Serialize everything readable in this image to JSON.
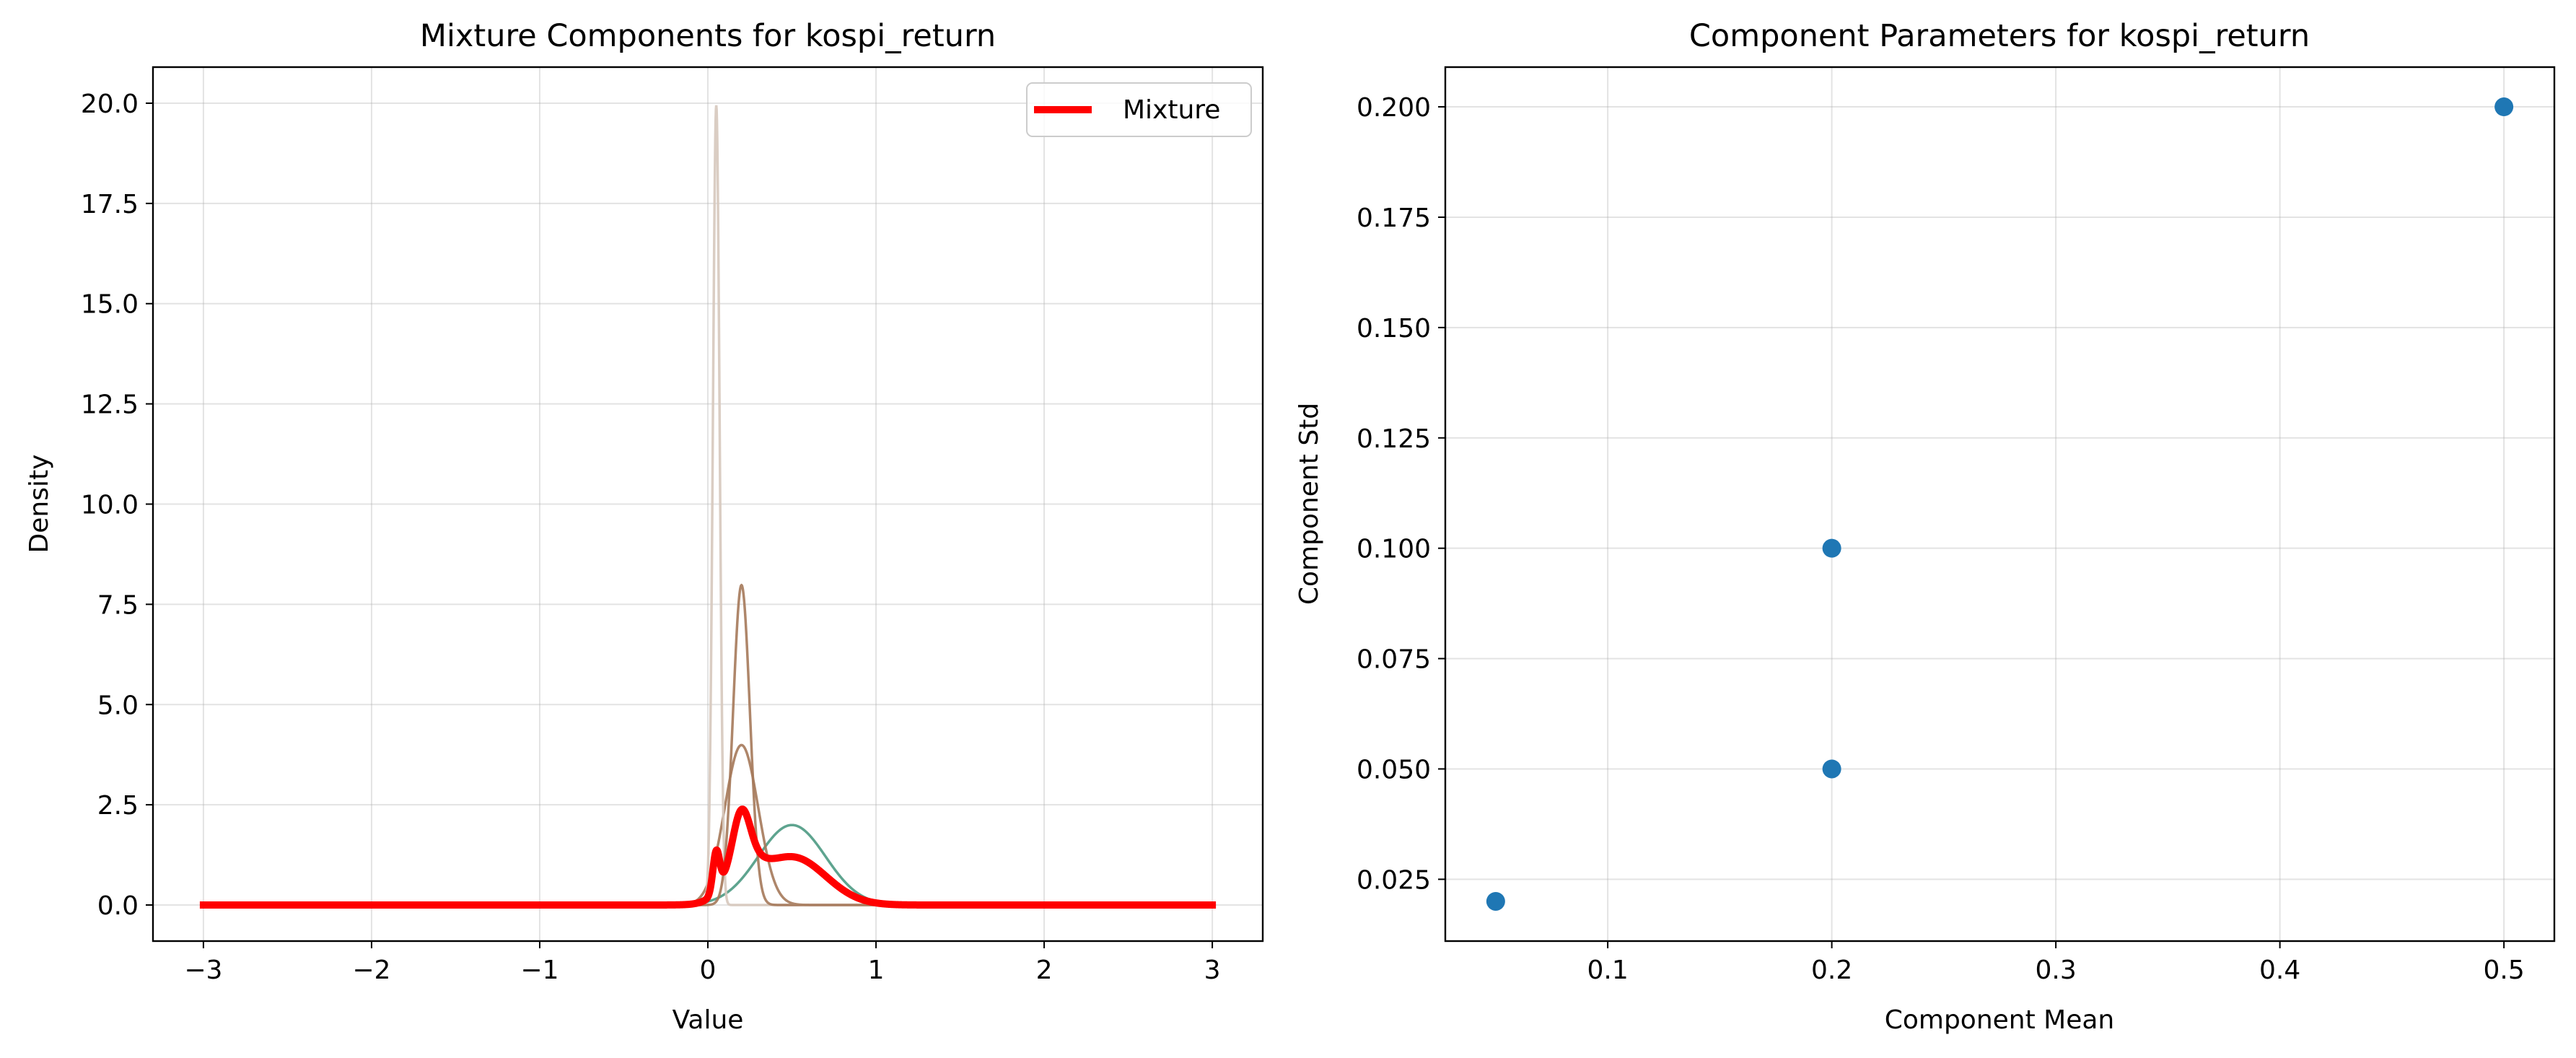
{
  "chart_data": [
    {
      "type": "line",
      "title": "Mixture Components for kospi_return",
      "xlabel": "Value",
      "ylabel": "Density",
      "xlim": [
        -3.3,
        3.3
      ],
      "ylim": [
        -0.9,
        20.9
      ],
      "x_ticks": [
        -3,
        -2,
        -1,
        0,
        1,
        2,
        3
      ],
      "x_tick_labels": [
        "−3",
        "−2",
        "−1",
        "0",
        "1",
        "2",
        "3"
      ],
      "y_ticks": [
        0,
        2.5,
        5,
        7.5,
        10,
        12.5,
        15,
        17.5,
        20
      ],
      "y_tick_labels": [
        "0.0",
        "2.5",
        "5.0",
        "7.5",
        "10.0",
        "12.5",
        "15.0",
        "17.5",
        "20.0"
      ],
      "grid": true,
      "legend_placement": "top-right",
      "x_domain": [
        -3,
        3
      ],
      "components": [
        {
          "mean": 0.5,
          "std": 0.2,
          "color": "#4c9a83"
        },
        {
          "mean": 0.2,
          "std": 0.1,
          "color": "#a5795a"
        },
        {
          "mean": 0.05,
          "std": 0.02,
          "color": "#d6c8bd"
        },
        {
          "mean": 0.2,
          "std": 0.05,
          "color": "#a5795a"
        }
      ],
      "series": [
        {
          "name": "Mixture",
          "color": "#ff0000",
          "weights": [
            0.6,
            0.2,
            0.05,
            0.15
          ]
        }
      ]
    },
    {
      "type": "scatter",
      "title": "Component Parameters for kospi_return",
      "xlabel": "Component Mean",
      "ylabel": "Component Std",
      "xlim": [
        0.0275,
        0.5225
      ],
      "ylim": [
        0.011,
        0.209
      ],
      "x_ticks": [
        0.1,
        0.2,
        0.3,
        0.4,
        0.5
      ],
      "x_tick_labels": [
        "0.1",
        "0.2",
        "0.3",
        "0.4",
        "0.5"
      ],
      "y_ticks": [
        0.025,
        0.05,
        0.075,
        0.1,
        0.125,
        0.15,
        0.175,
        0.2
      ],
      "y_tick_labels": [
        "0.025",
        "0.050",
        "0.075",
        "0.100",
        "0.125",
        "0.150",
        "0.175",
        "0.200"
      ],
      "grid": true,
      "point_color": "#1f77b4",
      "points": [
        {
          "x": 0.5,
          "y": 0.2
        },
        {
          "x": 0.2,
          "y": 0.1
        },
        {
          "x": 0.2,
          "y": 0.05
        },
        {
          "x": 0.05,
          "y": 0.02
        }
      ]
    }
  ]
}
